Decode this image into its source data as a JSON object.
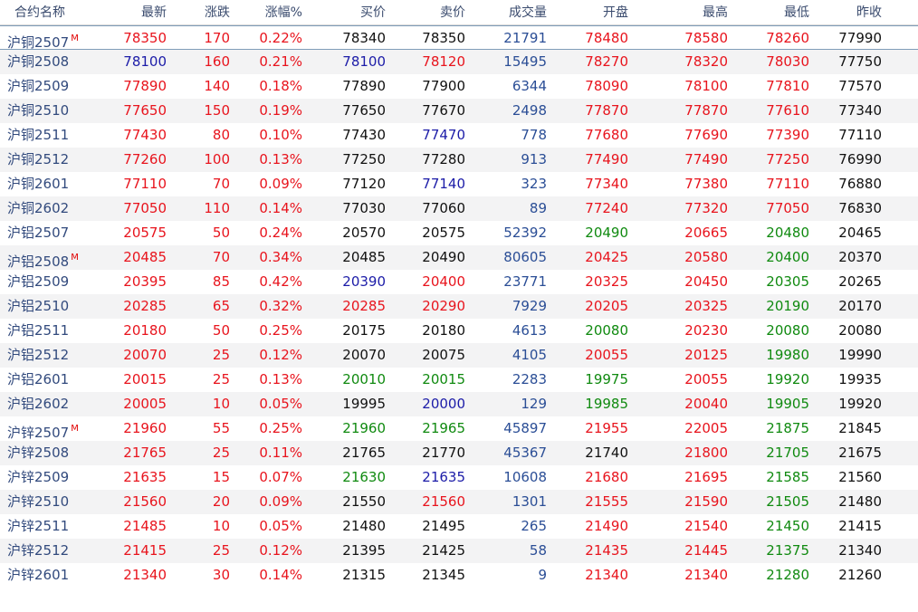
{
  "columns": [
    "合约名称",
    "最新",
    "涨跌",
    "涨幅%",
    "买价",
    "卖价",
    "成交量",
    "开盘",
    "最高",
    "最低",
    "昨收"
  ],
  "colors": {
    "up": "#e8141d",
    "down": "#108a10",
    "neutral_blue": "#1c1ca8",
    "volume": "#2b4e96",
    "flat": "#111111"
  },
  "rows": [
    {
      "name": "沪铜2507",
      "marker": "M",
      "last": "78350",
      "change": "170",
      "pct": "0.22%",
      "bid": "78340",
      "ask": "78350",
      "volume": "21791",
      "open": "78480",
      "high": "78580",
      "low": "78260",
      "prev": "77990"
    },
    {
      "name": "沪铜2508",
      "marker": "",
      "last": "78100",
      "change": "160",
      "pct": "0.21%",
      "bid": "78100",
      "ask": "78120",
      "volume": "15495",
      "open": "78270",
      "high": "78320",
      "low": "78030",
      "prev": "77750"
    },
    {
      "name": "沪铜2509",
      "marker": "",
      "last": "77890",
      "change": "140",
      "pct": "0.18%",
      "bid": "77890",
      "ask": "77900",
      "volume": "6344",
      "open": "78090",
      "high": "78100",
      "low": "77810",
      "prev": "77570"
    },
    {
      "name": "沪铜2510",
      "marker": "",
      "last": "77650",
      "change": "150",
      "pct": "0.19%",
      "bid": "77650",
      "ask": "77670",
      "volume": "2498",
      "open": "77870",
      "high": "77870",
      "low": "77610",
      "prev": "77340"
    },
    {
      "name": "沪铜2511",
      "marker": "",
      "last": "77430",
      "change": "80",
      "pct": "0.10%",
      "bid": "77430",
      "ask": "77470",
      "volume": "778",
      "open": "77680",
      "high": "77690",
      "low": "77390",
      "prev": "77110"
    },
    {
      "name": "沪铜2512",
      "marker": "",
      "last": "77260",
      "change": "100",
      "pct": "0.13%",
      "bid": "77250",
      "ask": "77280",
      "volume": "913",
      "open": "77490",
      "high": "77490",
      "low": "77250",
      "prev": "76990"
    },
    {
      "name": "沪铜2601",
      "marker": "",
      "last": "77110",
      "change": "70",
      "pct": "0.09%",
      "bid": "77120",
      "ask": "77140",
      "volume": "323",
      "open": "77340",
      "high": "77380",
      "low": "77110",
      "prev": "76880"
    },
    {
      "name": "沪铜2602",
      "marker": "",
      "last": "77050",
      "change": "110",
      "pct": "0.14%",
      "bid": "77030",
      "ask": "77060",
      "volume": "89",
      "open": "77240",
      "high": "77320",
      "low": "77050",
      "prev": "76830"
    },
    {
      "name": "沪铝2507",
      "marker": "",
      "last": "20575",
      "change": "50",
      "pct": "0.24%",
      "bid": "20570",
      "ask": "20575",
      "volume": "52392",
      "open": "20490",
      "high": "20665",
      "low": "20480",
      "prev": "20465"
    },
    {
      "name": "沪铝2508",
      "marker": "M",
      "last": "20485",
      "change": "70",
      "pct": "0.34%",
      "bid": "20485",
      "ask": "20490",
      "volume": "80605",
      "open": "20425",
      "high": "20580",
      "low": "20400",
      "prev": "20370"
    },
    {
      "name": "沪铝2509",
      "marker": "",
      "last": "20395",
      "change": "85",
      "pct": "0.42%",
      "bid": "20390",
      "ask": "20400",
      "volume": "23771",
      "open": "20325",
      "high": "20450",
      "low": "20305",
      "prev": "20265"
    },
    {
      "name": "沪铝2510",
      "marker": "",
      "last": "20285",
      "change": "65",
      "pct": "0.32%",
      "bid": "20285",
      "ask": "20290",
      "volume": "7929",
      "open": "20205",
      "high": "20325",
      "low": "20190",
      "prev": "20170"
    },
    {
      "name": "沪铝2511",
      "marker": "",
      "last": "20180",
      "change": "50",
      "pct": "0.25%",
      "bid": "20175",
      "ask": "20180",
      "volume": "4613",
      "open": "20080",
      "high": "20230",
      "low": "20080",
      "prev": "20080"
    },
    {
      "name": "沪铝2512",
      "marker": "",
      "last": "20070",
      "change": "25",
      "pct": "0.12%",
      "bid": "20070",
      "ask": "20075",
      "volume": "4105",
      "open": "20055",
      "high": "20125",
      "low": "19980",
      "prev": "19990"
    },
    {
      "name": "沪铝2601",
      "marker": "",
      "last": "20015",
      "change": "25",
      "pct": "0.13%",
      "bid": "20010",
      "ask": "20015",
      "volume": "2283",
      "open": "19975",
      "high": "20055",
      "low": "19920",
      "prev": "19935"
    },
    {
      "name": "沪铝2602",
      "marker": "",
      "last": "20005",
      "change": "10",
      "pct": "0.05%",
      "bid": "19995",
      "ask": "20000",
      "volume": "129",
      "open": "19985",
      "high": "20040",
      "low": "19905",
      "prev": "19920"
    },
    {
      "name": "沪锌2507",
      "marker": "M",
      "last": "21960",
      "change": "55",
      "pct": "0.25%",
      "bid": "21960",
      "ask": "21965",
      "volume": "45897",
      "open": "21955",
      "high": "22005",
      "low": "21875",
      "prev": "21845"
    },
    {
      "name": "沪锌2508",
      "marker": "",
      "last": "21765",
      "change": "25",
      "pct": "0.11%",
      "bid": "21765",
      "ask": "21770",
      "volume": "45367",
      "open": "21740",
      "high": "21800",
      "low": "21705",
      "prev": "21675"
    },
    {
      "name": "沪锌2509",
      "marker": "",
      "last": "21635",
      "change": "15",
      "pct": "0.07%",
      "bid": "21630",
      "ask": "21635",
      "volume": "10608",
      "open": "21680",
      "high": "21695",
      "low": "21585",
      "prev": "21560"
    },
    {
      "name": "沪锌2510",
      "marker": "",
      "last": "21560",
      "change": "20",
      "pct": "0.09%",
      "bid": "21550",
      "ask": "21560",
      "volume": "1301",
      "open": "21555",
      "high": "21590",
      "low": "21505",
      "prev": "21480"
    },
    {
      "name": "沪锌2511",
      "marker": "",
      "last": "21485",
      "change": "10",
      "pct": "0.05%",
      "bid": "21480",
      "ask": "21495",
      "volume": "265",
      "open": "21490",
      "high": "21540",
      "low": "21450",
      "prev": "21415"
    },
    {
      "name": "沪锌2512",
      "marker": "",
      "last": "21415",
      "change": "25",
      "pct": "0.12%",
      "bid": "21395",
      "ask": "21425",
      "volume": "58",
      "open": "21435",
      "high": "21445",
      "low": "21375",
      "prev": "21340"
    },
    {
      "name": "沪锌2601",
      "marker": "",
      "last": "21340",
      "change": "30",
      "pct": "0.14%",
      "bid": "21315",
      "ask": "21345",
      "volume": "9",
      "open": "21340",
      "high": "21340",
      "low": "21280",
      "prev": "21260"
    }
  ]
}
